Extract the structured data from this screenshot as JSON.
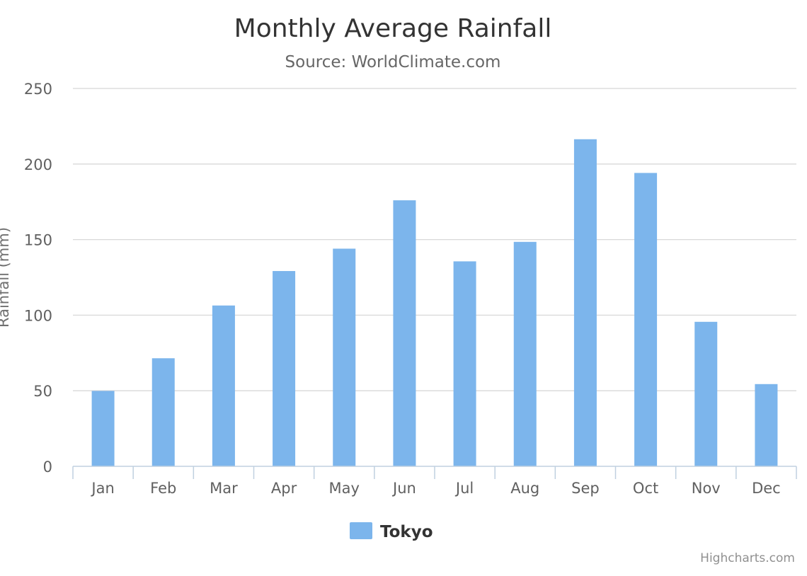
{
  "chart_data": {
    "type": "bar",
    "title": "Monthly Average Rainfall",
    "subtitle": "Source: WorldClimate.com",
    "xlabel": "",
    "ylabel": "Rainfall (mm)",
    "categories": [
      "Jan",
      "Feb",
      "Mar",
      "Apr",
      "May",
      "Jun",
      "Jul",
      "Aug",
      "Sep",
      "Oct",
      "Nov",
      "Dec"
    ],
    "series": [
      {
        "name": "Tokyo",
        "color": "#7cb5ec",
        "values": [
          49.9,
          71.5,
          106.4,
          129.2,
          144.0,
          176.0,
          135.6,
          148.5,
          216.4,
          194.1,
          95.6,
          54.4
        ]
      }
    ],
    "ylim": [
      0,
      250
    ],
    "yticks": [
      0,
      50,
      100,
      150,
      200,
      250
    ],
    "grid": true,
    "legend_placement": "bottom-center",
    "credits": "Highcharts.com"
  }
}
